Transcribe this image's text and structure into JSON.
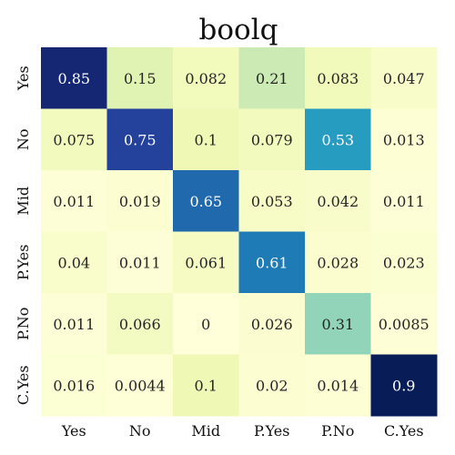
{
  "chart_data": {
    "type": "heatmap",
    "title": "boolq",
    "x_categories": [
      "Yes",
      "No",
      "Mid",
      "P.Yes",
      "P.No",
      "C.Yes"
    ],
    "y_categories": [
      "Yes",
      "No",
      "Mid",
      "P.Yes",
      "P.No",
      "C.Yes"
    ],
    "values": [
      [
        "0.85",
        "0.15",
        "0.082",
        "0.21",
        "0.083",
        "0.047"
      ],
      [
        "0.075",
        "0.75",
        "0.1",
        "0.079",
        "0.53",
        "0.013"
      ],
      [
        "0.011",
        "0.019",
        "0.65",
        "0.053",
        "0.042",
        "0.011"
      ],
      [
        "0.04",
        "0.011",
        "0.061",
        "0.61",
        "0.028",
        "0.023"
      ],
      [
        "0.011",
        "0.066",
        "0",
        "0.026",
        "0.31",
        "0.0085"
      ],
      [
        "0.016",
        "0.0044",
        "0.1",
        "0.02",
        "0.014",
        "0.9"
      ]
    ],
    "colormap": "YlGnBu",
    "color_range": [
      0,
      0.9
    ],
    "colorbar": false
  }
}
